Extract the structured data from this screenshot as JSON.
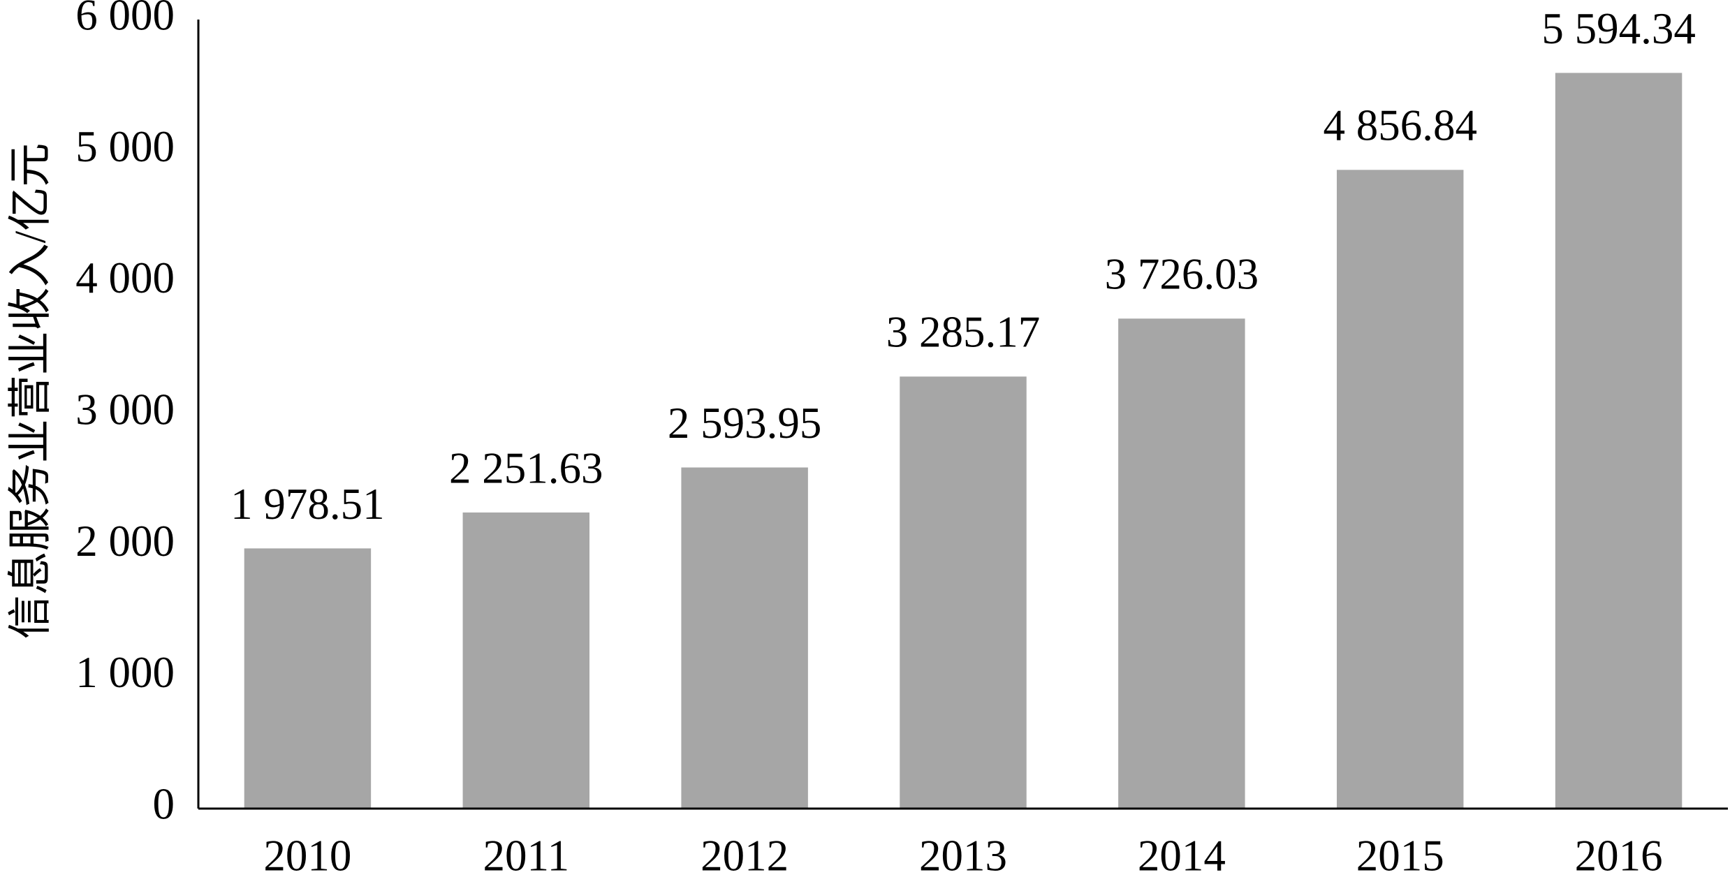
{
  "chart_data": {
    "type": "bar",
    "y_label": "信息服务业营业收入/亿元",
    "categories": [
      "2010",
      "2011",
      "2012",
      "2013",
      "2014",
      "2015",
      "2016"
    ],
    "values": [
      1978.51,
      2251.63,
      2593.95,
      3285.17,
      3726.03,
      4856.84,
      5594.34
    ],
    "value_labels": [
      "1 978.51",
      "2 251.63",
      "2 593.95",
      "3 285.17",
      "3 726.03",
      "4 856.84",
      "5 594.34"
    ],
    "color": "#a6a6a6",
    "ylim": [
      0,
      6000
    ],
    "yticks": [
      0,
      {
        "value": 1000,
        "label": "1 000"
      },
      {
        "value": 2000,
        "label": "2 000"
      },
      {
        "value": 3000,
        "label": "3 000"
      },
      {
        "value": 4000,
        "label": "4 000"
      },
      {
        "value": 5000,
        "label": "5 000"
      },
      {
        "value": 6000,
        "label": "6 000"
      }
    ],
    "grid": false
  }
}
